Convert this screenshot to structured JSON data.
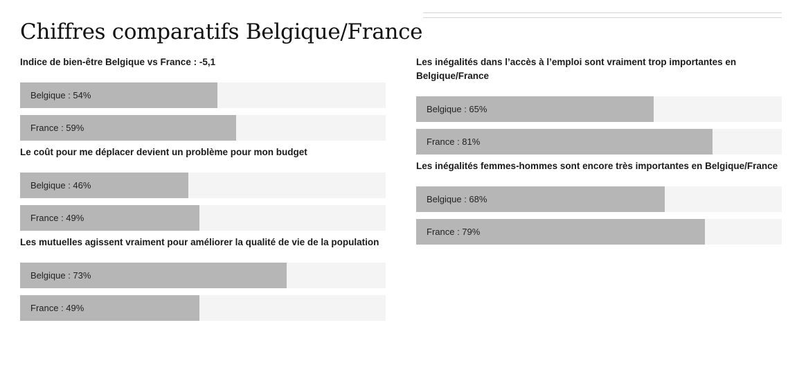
{
  "title": "Chiffres comparatifs Belgique/France",
  "colors": {
    "bar_fill": "#b6b6b6",
    "bar_track": "#f4f4f4",
    "text": "#1a1a1a"
  },
  "chart_data": {
    "type": "bar",
    "orientation": "horizontal",
    "value_range": [
      0,
      100
    ],
    "unit": "%",
    "columns": [
      {
        "groups": [
          {
            "title": "Indice de bien-être Belgique vs France : -5,1",
            "bars": [
              {
                "country": "Belgique",
                "value": 54,
                "label": "Belgique : 54%"
              },
              {
                "country": "France",
                "value": 59,
                "label": "France : 59%"
              }
            ]
          },
          {
            "title": "Le coût pour me déplacer devient un problème pour mon budget",
            "bars": [
              {
                "country": "Belgique",
                "value": 46,
                "label": "Belgique : 46%"
              },
              {
                "country": "France",
                "value": 49,
                "label": "France : 49%"
              }
            ]
          },
          {
            "title": "Les mutuelles agissent vraiment pour améliorer la qualité de vie de la population",
            "bars": [
              {
                "country": "Belgique",
                "value": 73,
                "label": "Belgique : 73%"
              },
              {
                "country": "France",
                "value": 49,
                "label": "France : 49%"
              }
            ]
          }
        ]
      },
      {
        "groups": [
          {
            "title": "Les inégalités dans l’accès à l’emploi sont vraiment trop importantes en Belgique/France",
            "bars": [
              {
                "country": "Belgique",
                "value": 65,
                "label": "Belgique : 65%"
              },
              {
                "country": "France",
                "value": 81,
                "label": "France : 81%"
              }
            ]
          },
          {
            "title": "Les inégalités femmes-hommes sont encore très importantes en Belgique/France",
            "bars": [
              {
                "country": "Belgique",
                "value": 68,
                "label": "Belgique : 68%"
              },
              {
                "country": "France",
                "value": 79,
                "label": "France : 79%"
              }
            ]
          }
        ]
      }
    ]
  }
}
